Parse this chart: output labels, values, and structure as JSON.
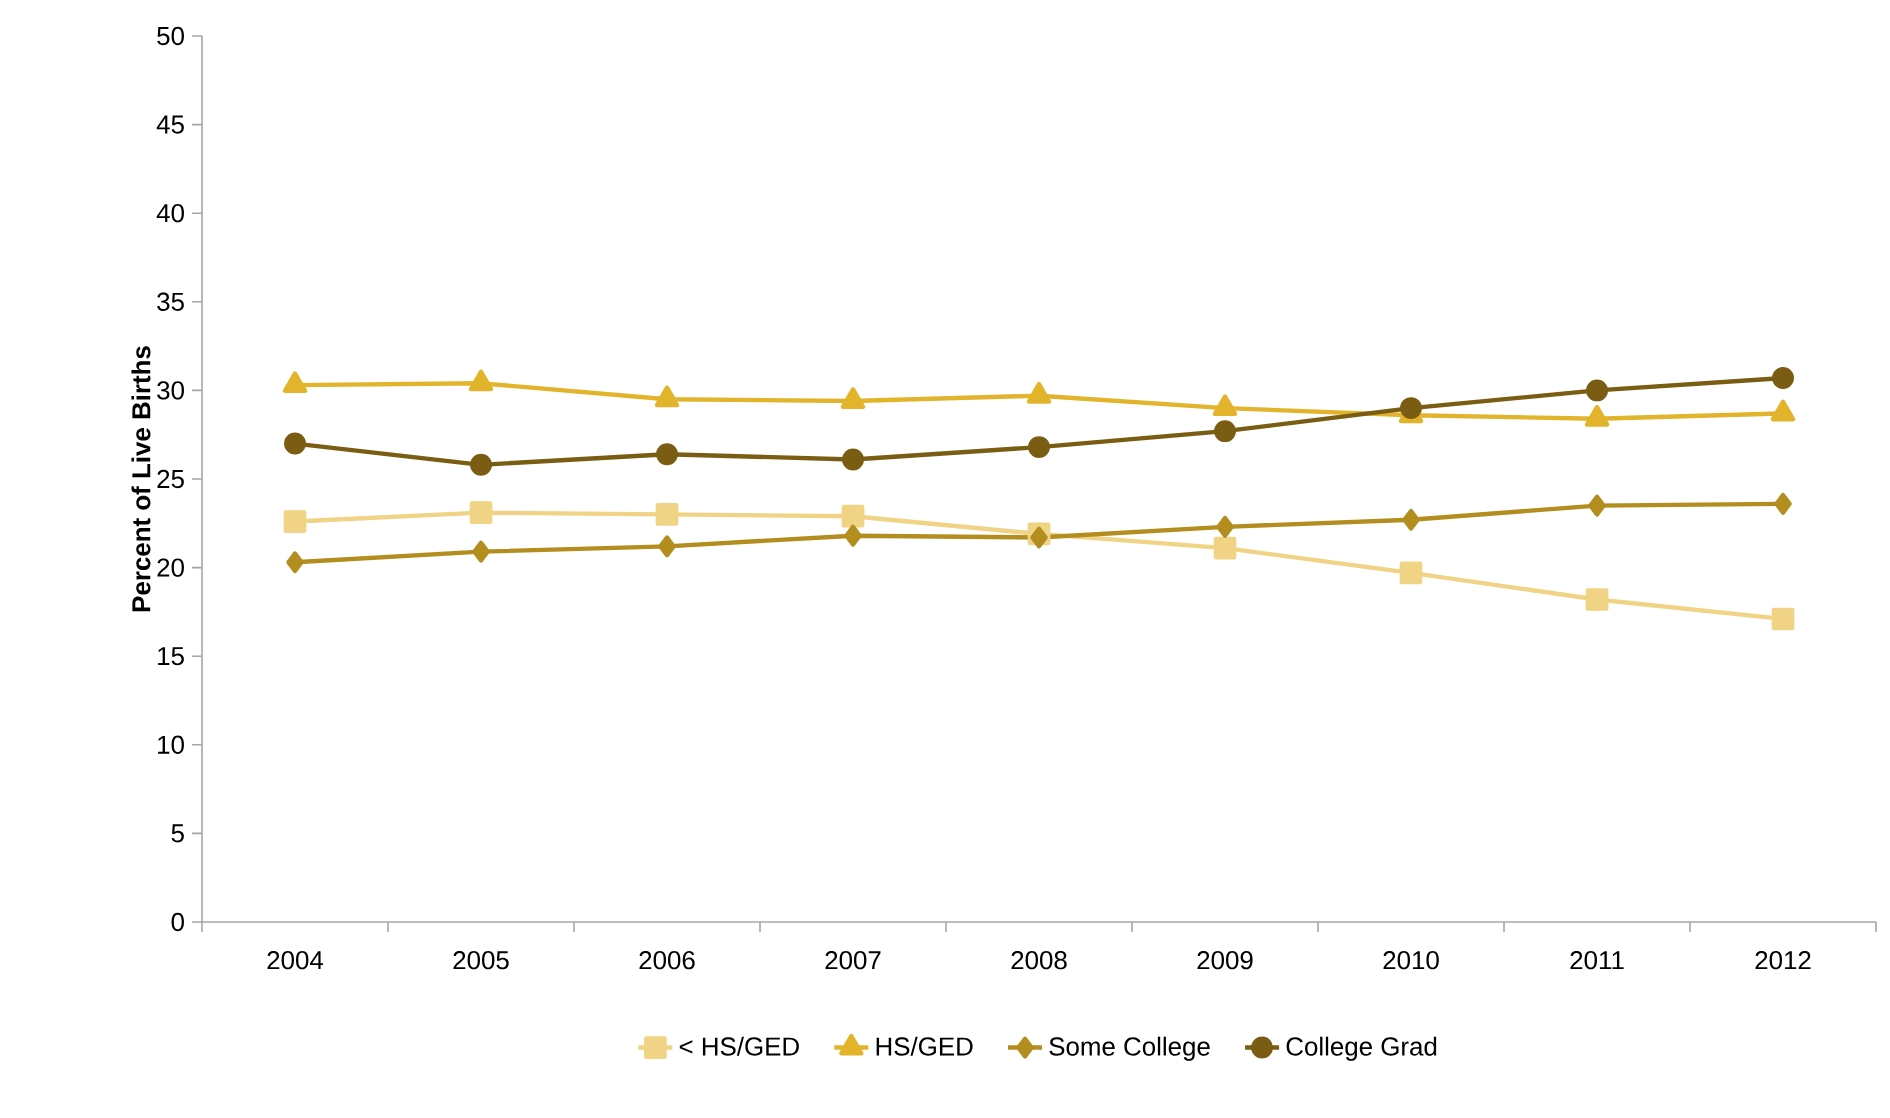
{
  "chart_data": {
    "type": "line",
    "ylabel": "Percent of Live Births",
    "categories": [
      "2004",
      "2005",
      "2006",
      "2007",
      "2008",
      "2009",
      "2010",
      "2011",
      "2012"
    ],
    "ylim": [
      0,
      50
    ],
    "yticks": [
      0,
      5,
      10,
      15,
      20,
      25,
      30,
      35,
      40,
      45,
      50
    ],
    "grid": false,
    "legend": "bottom",
    "series": [
      {
        "name": "< HS/GED",
        "color": "#f0d384",
        "marker": "square",
        "values": [
          22.6,
          23.1,
          23.0,
          22.9,
          21.9,
          21.1,
          19.7,
          18.2,
          17.1
        ]
      },
      {
        "name": "HS/GED",
        "color": "#e2b42c",
        "marker": "triangle",
        "values": [
          30.3,
          30.4,
          29.5,
          29.4,
          29.7,
          29.0,
          28.6,
          28.4,
          28.7
        ]
      },
      {
        "name": "Some College",
        "color": "#b38e1e",
        "marker": "diamond",
        "values": [
          20.3,
          20.9,
          21.2,
          21.8,
          21.7,
          22.3,
          22.7,
          23.5,
          23.6
        ]
      },
      {
        "name": "College Grad",
        "color": "#7a5c12",
        "marker": "circle",
        "values": [
          27.0,
          25.8,
          26.4,
          26.1,
          26.8,
          27.7,
          29.0,
          30.0,
          30.7
        ]
      }
    ]
  }
}
